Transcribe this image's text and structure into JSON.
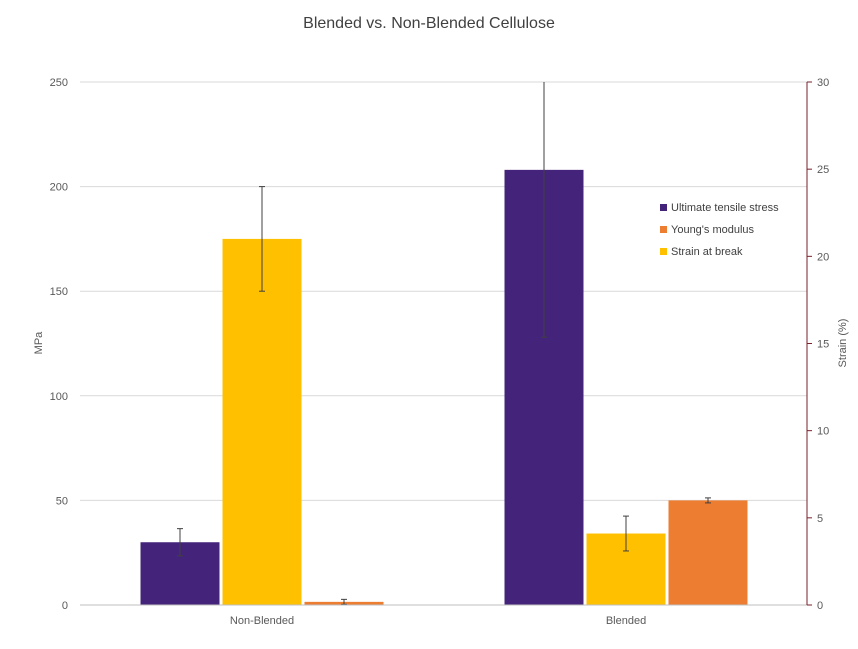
{
  "chart_data": {
    "type": "bar",
    "title": "Blended vs. Non-Blended Cellulose",
    "categories": [
      "Non-Blended",
      "Blended"
    ],
    "y_left": {
      "label": "MPa",
      "range": [
        0,
        250
      ],
      "ticks": [
        0,
        50,
        100,
        150,
        200,
        250
      ]
    },
    "y_right": {
      "label": "Strain (%)",
      "range": [
        0,
        30
      ],
      "ticks": [
        0,
        5,
        10,
        15,
        20,
        25,
        30
      ],
      "color": "#7a1f2b"
    },
    "grid": true,
    "legend_position": "right-top",
    "series": [
      {
        "name": "Ultimate tensile stress",
        "axis": "left",
        "color": "#44247a",
        "values": [
          30,
          208
        ],
        "error": [
          6.5,
          80
        ]
      },
      {
        "name": "Young's modulus",
        "axis": "left",
        "color": "#ed7d31",
        "values": [
          1.5,
          50
        ],
        "error": [
          1.2,
          1.2
        ]
      },
      {
        "name": "Strain at break",
        "axis": "right",
        "color": "#ffc000",
        "values": [
          21,
          4.1
        ],
        "error": [
          3,
          1
        ]
      }
    ]
  }
}
